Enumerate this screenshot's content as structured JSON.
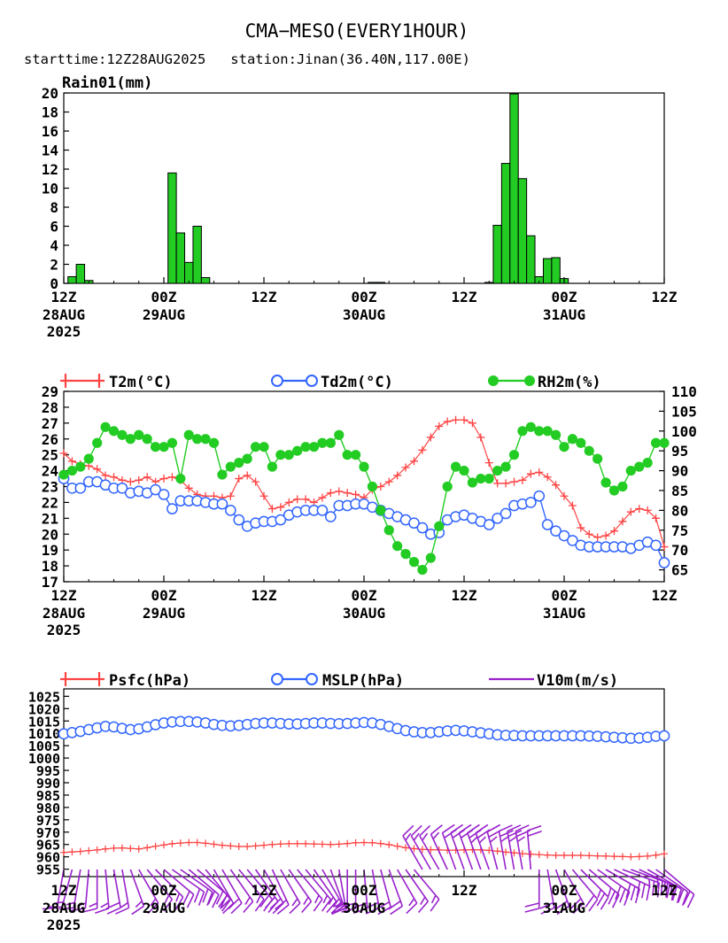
{
  "header": {
    "title": "CMA−MESO(EVERY1HOUR)",
    "subtitle": "starttime:12Z28AUG2025   station:Jinan(36.40N,117.00E)"
  },
  "colors": {
    "rain_fill": "#22cc22",
    "t2m": "#ff4444",
    "td2m": "#3366ff",
    "rh2m": "#22cc22",
    "psfc": "#ff4444",
    "mslp": "#3366ff",
    "v10m": "#9922cc"
  },
  "time_axis": {
    "tick_labels": [
      {
        "line1": "12Z",
        "line2": "28AUG",
        "line3": "2025"
      },
      {
        "line1": "00Z",
        "line2": "29AUG",
        "line3": ""
      },
      {
        "line1": "12Z",
        "line2": "",
        "line3": ""
      },
      {
        "line1": "00Z",
        "line2": "30AUG",
        "line3": ""
      },
      {
        "line1": "12Z",
        "line2": "",
        "line3": ""
      },
      {
        "line1": "00Z",
        "line2": "31AUG",
        "line3": ""
      },
      {
        "line1": "12Z",
        "line2": "",
        "line3": ""
      }
    ],
    "range_hours": [
      0,
      72
    ]
  },
  "chart_data": [
    {
      "type": "bar",
      "title": "Rain01(mm)",
      "ylim": [
        0,
        20
      ],
      "yticks": [
        0,
        2,
        4,
        6,
        8,
        10,
        12,
        14,
        16,
        18,
        20
      ],
      "x_hours": [
        1,
        2,
        3,
        13,
        14,
        15,
        16,
        17,
        37,
        38,
        51,
        52,
        53,
        54,
        55,
        56,
        57,
        58,
        59,
        60
      ],
      "values": [
        0.7,
        2.0,
        0.3,
        11.6,
        5.3,
        2.2,
        6.0,
        0.6,
        0.1,
        0.1,
        0.1,
        6.1,
        12.6,
        19.9,
        11.0,
        5.0,
        0.7,
        2.6,
        2.7,
        0.5
      ]
    },
    {
      "type": "line",
      "ylim_left": [
        17,
        29
      ],
      "yticks_left": [
        17,
        18,
        19,
        20,
        21,
        22,
        23,
        24,
        25,
        26,
        27,
        28,
        29
      ],
      "ylim_right": [
        62,
        110
      ],
      "yticks_right": [
        65,
        70,
        75,
        80,
        85,
        90,
        95,
        100,
        105,
        110
      ],
      "series": [
        {
          "name": "T2m(°C)",
          "axis": "left",
          "values": [
            25.1,
            24.6,
            24.4,
            24.3,
            24.1,
            23.7,
            23.6,
            23.4,
            23.3,
            23.4,
            23.6,
            23.3,
            23.5,
            23.6,
            23.4,
            22.9,
            22.5,
            22.4,
            22.4,
            22.3,
            22.4,
            23.5,
            23.7,
            23.3,
            22.4,
            21.6,
            21.7,
            22.0,
            22.2,
            22.2,
            22.0,
            22.3,
            22.6,
            22.7,
            22.6,
            22.5,
            22.3,
            22.8,
            23.0,
            23.3,
            23.7,
            24.2,
            24.6,
            25.3,
            26.1,
            26.8,
            27.1,
            27.2,
            27.2,
            27.0,
            26.1,
            24.5,
            23.2,
            23.2,
            23.3,
            23.4,
            23.8,
            23.9,
            23.6,
            23.1,
            22.4,
            21.8,
            20.4,
            20.0,
            19.8,
            19.9,
            20.2,
            20.8,
            21.4,
            21.6,
            21.5,
            21.0,
            19.2
          ]
        },
        {
          "name": "Td2m(°C)",
          "axis": "left",
          "values": [
            23.5,
            22.9,
            22.9,
            23.3,
            23.3,
            23.1,
            22.9,
            22.9,
            22.6,
            22.7,
            22.6,
            22.8,
            22.5,
            21.6,
            22.1,
            22.1,
            22.1,
            22.0,
            21.9,
            21.9,
            21.5,
            20.9,
            20.5,
            20.7,
            20.8,
            20.8,
            20.9,
            21.2,
            21.4,
            21.5,
            21.5,
            21.5,
            21.1,
            21.8,
            21.8,
            21.9,
            21.9,
            21.7,
            21.5,
            21.3,
            21.1,
            20.9,
            20.7,
            20.4,
            20.0,
            20.1,
            20.9,
            21.1,
            21.2,
            21.0,
            20.8,
            20.6,
            21.0,
            21.3,
            21.8,
            21.9,
            22.0,
            22.4,
            20.6,
            20.2,
            19.9,
            19.6,
            19.3,
            19.2,
            19.2,
            19.2,
            19.2,
            19.2,
            19.1,
            19.3,
            19.5,
            19.3,
            18.2
          ]
        },
        {
          "name": "RH2m(%)",
          "axis": "right",
          "values": [
            89,
            90,
            91,
            93,
            97,
            101,
            100,
            99,
            98,
            99,
            98,
            96,
            96,
            97,
            88,
            99,
            98,
            98,
            97,
            89,
            91,
            92,
            93,
            96,
            96,
            91,
            94,
            94,
            95,
            96,
            96,
            97,
            97,
            99,
            94,
            94,
            91,
            86,
            80,
            75,
            71,
            69,
            67,
            65,
            68,
            76,
            86,
            91,
            90,
            87,
            88,
            88,
            90,
            91,
            94,
            100,
            101,
            100,
            100,
            99,
            96,
            98,
            97,
            95,
            93,
            87,
            85,
            86,
            90,
            91,
            92,
            97,
            97
          ]
        }
      ]
    },
    {
      "type": "line",
      "ylim": [
        952,
        1028
      ],
      "yticks": [
        955,
        960,
        965,
        970,
        975,
        980,
        985,
        990,
        995,
        1000,
        1005,
        1010,
        1015,
        1020,
        1025
      ],
      "series": [
        {
          "name": "Psfc(hPa)",
          "values": [
            961.8,
            962.0,
            962.2,
            962.5,
            962.8,
            963.2,
            963.5,
            963.6,
            963.4,
            963.2,
            963.7,
            964.3,
            964.8,
            965.3,
            965.6,
            965.8,
            965.8,
            965.5,
            965.1,
            964.7,
            964.4,
            964.2,
            964.2,
            964.4,
            964.7,
            965.0,
            965.2,
            965.3,
            965.3,
            965.3,
            965.2,
            965.1,
            965.0,
            965.1,
            965.4,
            965.7,
            965.8,
            965.7,
            965.4,
            964.9,
            964.3,
            963.7,
            963.3,
            963.0,
            962.9,
            962.8,
            962.7,
            962.7,
            962.8,
            962.9,
            962.8,
            962.6,
            962.3,
            961.9,
            961.6,
            961.3,
            961.1,
            960.9,
            960.7,
            960.6,
            960.6,
            960.6,
            960.6,
            960.5,
            960.4,
            960.3,
            960.2,
            960.1,
            960.0,
            960.1,
            960.3,
            960.7,
            961.2
          ]
        },
        {
          "name": "MSLP(hPa)",
          "values": [
            1009.8,
            1010.3,
            1010.8,
            1011.5,
            1012.2,
            1012.8,
            1012.6,
            1012.0,
            1011.5,
            1011.8,
            1012.6,
            1013.5,
            1014.2,
            1014.6,
            1014.8,
            1014.8,
            1014.6,
            1014.2,
            1013.6,
            1013.2,
            1013.0,
            1013.2,
            1013.6,
            1014.0,
            1014.2,
            1014.2,
            1014.0,
            1013.8,
            1013.8,
            1014.0,
            1014.2,
            1014.2,
            1014.0,
            1013.9,
            1014.0,
            1014.2,
            1014.4,
            1014.2,
            1013.6,
            1012.8,
            1011.9,
            1011.1,
            1010.6,
            1010.3,
            1010.3,
            1010.6,
            1011.0,
            1011.2,
            1011.0,
            1010.6,
            1010.2,
            1009.8,
            1009.4,
            1009.2,
            1009.1,
            1009.0,
            1009.0,
            1009.0,
            1009.0,
            1009.0,
            1009.0,
            1009.0,
            1009.0,
            1008.9,
            1008.8,
            1008.6,
            1008.4,
            1008.2,
            1008.0,
            1008.1,
            1008.4,
            1008.8,
            1009.0
          ]
        },
        {
          "name": "V10m(m/s)",
          "type": "wind_barbs",
          "speed": [
            4,
            5,
            5,
            6,
            6,
            6,
            7,
            6,
            6,
            5,
            5,
            6,
            7,
            8,
            8,
            8,
            7,
            7,
            7,
            7,
            6,
            6,
            7,
            7,
            7,
            7,
            6,
            6,
            6,
            6,
            6,
            5,
            5,
            6,
            7,
            8,
            8,
            8,
            7,
            7,
            6,
            6,
            5,
            5,
            5,
            6,
            6,
            7,
            7,
            8,
            9,
            10,
            10,
            10,
            9,
            9,
            8,
            8,
            7,
            7,
            7,
            8,
            9,
            10,
            11,
            11,
            11,
            10,
            10,
            9,
            9,
            8,
            8
          ],
          "direction_deg": [
            190,
            195,
            190,
            185,
            180,
            175,
            170,
            170,
            160,
            150,
            140,
            135,
            130,
            125,
            125,
            130,
            130,
            140,
            150,
            150,
            145,
            140,
            140,
            145,
            150,
            155,
            150,
            145,
            140,
            140,
            145,
            150,
            160,
            170,
            180,
            180,
            175,
            170,
            165,
            160,
            150,
            145,
            140,
            330,
            330,
            330,
            335,
            340,
            340,
            340,
            340,
            340,
            345,
            350,
            350,
            350,
            355,
            180,
            170,
            160,
            150,
            140,
            135,
            130,
            125,
            120,
            115,
            110,
            110,
            115,
            120,
            125,
            130
          ]
        }
      ]
    }
  ]
}
